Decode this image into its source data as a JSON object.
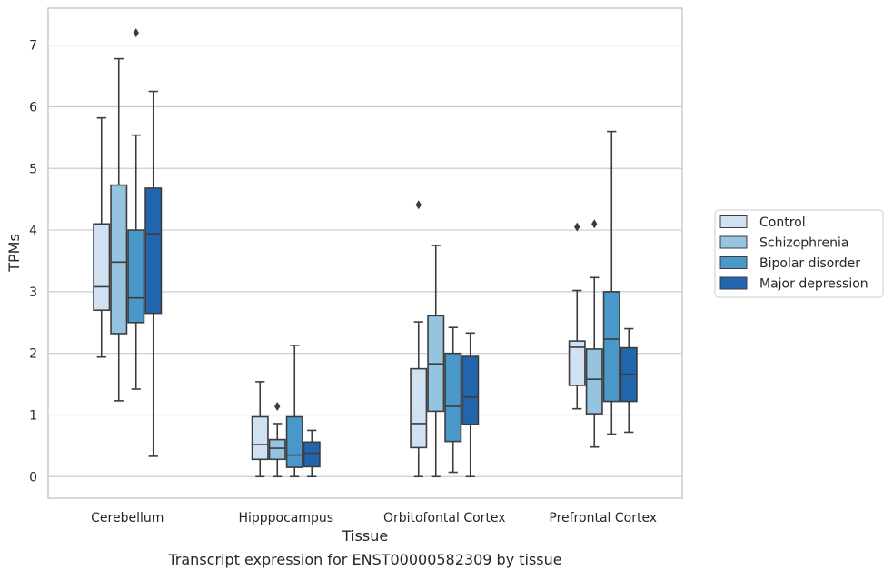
{
  "chart_data": {
    "type": "box",
    "title": "",
    "caption": "Transcript expression for ENST00000582309 by tissue",
    "xlabel": "Tissue",
    "ylabel": "TPMs",
    "ylim": [
      -0.35,
      7.6
    ],
    "yticks": [
      0,
      1,
      2,
      3,
      4,
      5,
      6,
      7
    ],
    "grid": "horizontal",
    "legend_position": "right",
    "categories": [
      "Cerebellum",
      "Hipppocampus",
      "Orbitofontal Cortex",
      "Prefrontal Cortex"
    ],
    "series": [
      {
        "name": "Control",
        "color": "#d0e1f2",
        "boxes": [
          {
            "whisker_low": 1.94,
            "q1": 2.7,
            "median": 3.08,
            "q3": 4.1,
            "whisker_high": 5.82,
            "outliers": []
          },
          {
            "whisker_low": 0.0,
            "q1": 0.28,
            "median": 0.52,
            "q3": 0.97,
            "whisker_high": 1.54,
            "outliers": []
          },
          {
            "whisker_low": 0.0,
            "q1": 0.47,
            "median": 0.86,
            "q3": 1.75,
            "whisker_high": 2.51,
            "outliers": [
              4.41
            ]
          },
          {
            "whisker_low": 1.1,
            "q1": 1.48,
            "median": 2.1,
            "q3": 2.2,
            "whisker_high": 3.02,
            "outliers": [
              4.05
            ]
          }
        ]
      },
      {
        "name": "Schizophrenia",
        "color": "#94c4df",
        "boxes": [
          {
            "whisker_low": 1.23,
            "q1": 2.32,
            "median": 3.48,
            "q3": 4.73,
            "whisker_high": 6.78,
            "outliers": []
          },
          {
            "whisker_low": 0.0,
            "q1": 0.28,
            "median": 0.46,
            "q3": 0.6,
            "whisker_high": 0.86,
            "outliers": [
              1.14
            ]
          },
          {
            "whisker_low": 0.0,
            "q1": 1.06,
            "median": 1.83,
            "q3": 2.61,
            "whisker_high": 3.75,
            "outliers": []
          },
          {
            "whisker_low": 0.48,
            "q1": 1.02,
            "median": 1.58,
            "q3": 2.07,
            "whisker_high": 3.23,
            "outliers": [
              4.1
            ]
          }
        ]
      },
      {
        "name": "Bipolar disorder",
        "color": "#4a98c9",
        "boxes": [
          {
            "whisker_low": 1.42,
            "q1": 2.5,
            "median": 2.9,
            "q3": 4.0,
            "whisker_high": 5.54,
            "outliers": [
              7.2
            ]
          },
          {
            "whisker_low": 0.0,
            "q1": 0.15,
            "median": 0.35,
            "q3": 0.97,
            "whisker_high": 2.13,
            "outliers": []
          },
          {
            "whisker_low": 0.07,
            "q1": 0.57,
            "median": 1.14,
            "q3": 2.0,
            "whisker_high": 2.42,
            "outliers": []
          },
          {
            "whisker_low": 0.69,
            "q1": 1.22,
            "median": 2.23,
            "q3": 3.0,
            "whisker_high": 5.6,
            "outliers": []
          }
        ]
      },
      {
        "name": "Major depression",
        "color": "#2166ac",
        "boxes": [
          {
            "whisker_low": 0.33,
            "q1": 2.65,
            "median": 3.94,
            "q3": 4.68,
            "whisker_high": 6.25,
            "outliers": []
          },
          {
            "whisker_low": 0.0,
            "q1": 0.16,
            "median": 0.38,
            "q3": 0.56,
            "whisker_high": 0.75,
            "outliers": []
          },
          {
            "whisker_low": 0.0,
            "q1": 0.85,
            "median": 1.29,
            "q3": 1.95,
            "whisker_high": 2.33,
            "outliers": []
          },
          {
            "whisker_low": 0.72,
            "q1": 1.22,
            "median": 1.66,
            "q3": 2.09,
            "whisker_high": 2.4,
            "outliers": []
          }
        ]
      }
    ]
  }
}
